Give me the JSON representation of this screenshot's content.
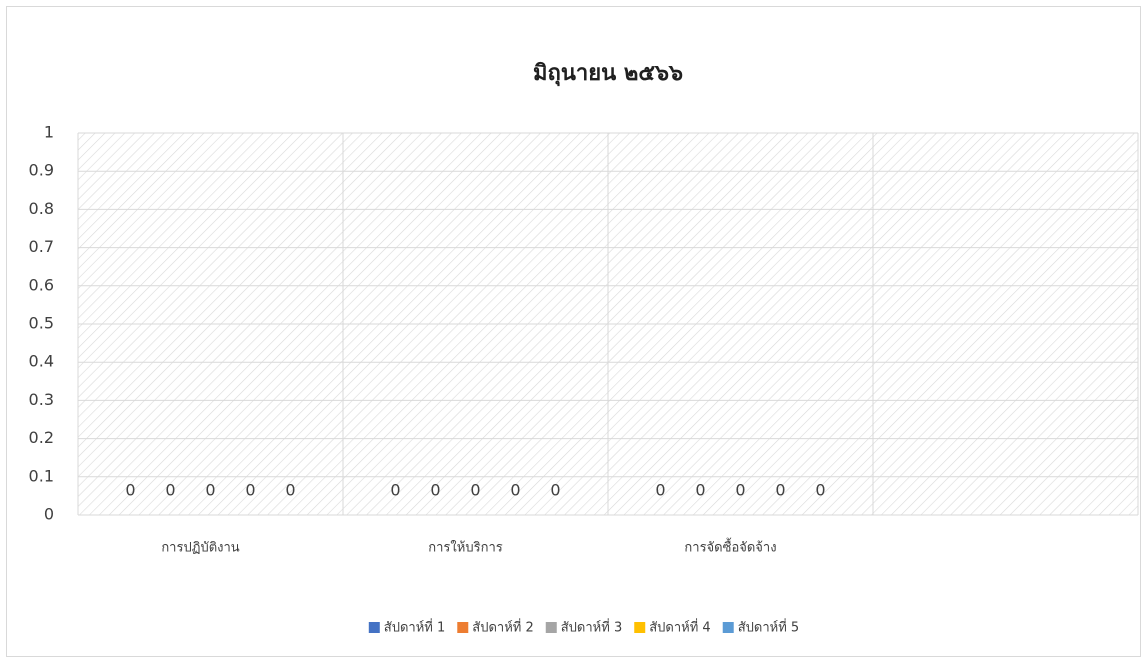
{
  "chart_data": {
    "type": "bar",
    "title": "มิถุนายน ๒๕๖๖",
    "categories": [
      "การปฏิบัติงาน",
      "การให้บริการ",
      "การจัดซื้อจัดจ้าง",
      null
    ],
    "series": [
      {
        "name": "สัปดาห์ที่ 1",
        "color": "#4472c4",
        "values": [
          0,
          0,
          0,
          null
        ]
      },
      {
        "name": "สัปดาห์ที่ 2",
        "color": "#ed7d31",
        "values": [
          0,
          0,
          0,
          null
        ]
      },
      {
        "name": "สัปดาห์ที่ 3",
        "color": "#a5a5a5",
        "values": [
          0,
          0,
          0,
          null
        ]
      },
      {
        "name": "สัปดาห์ที่ 4",
        "color": "#ffc000",
        "values": [
          0,
          0,
          0,
          null
        ]
      },
      {
        "name": "สัปดาห์ที่ 5",
        "color": "#5b9bd5",
        "values": [
          0,
          0,
          0,
          null
        ]
      }
    ],
    "ylim": [
      0,
      1
    ],
    "yticks": [
      0,
      0.1,
      0.2,
      0.3,
      0.4,
      0.5,
      0.6,
      0.7,
      0.8,
      0.9,
      1
    ],
    "grid": true,
    "legend": "bottom"
  }
}
